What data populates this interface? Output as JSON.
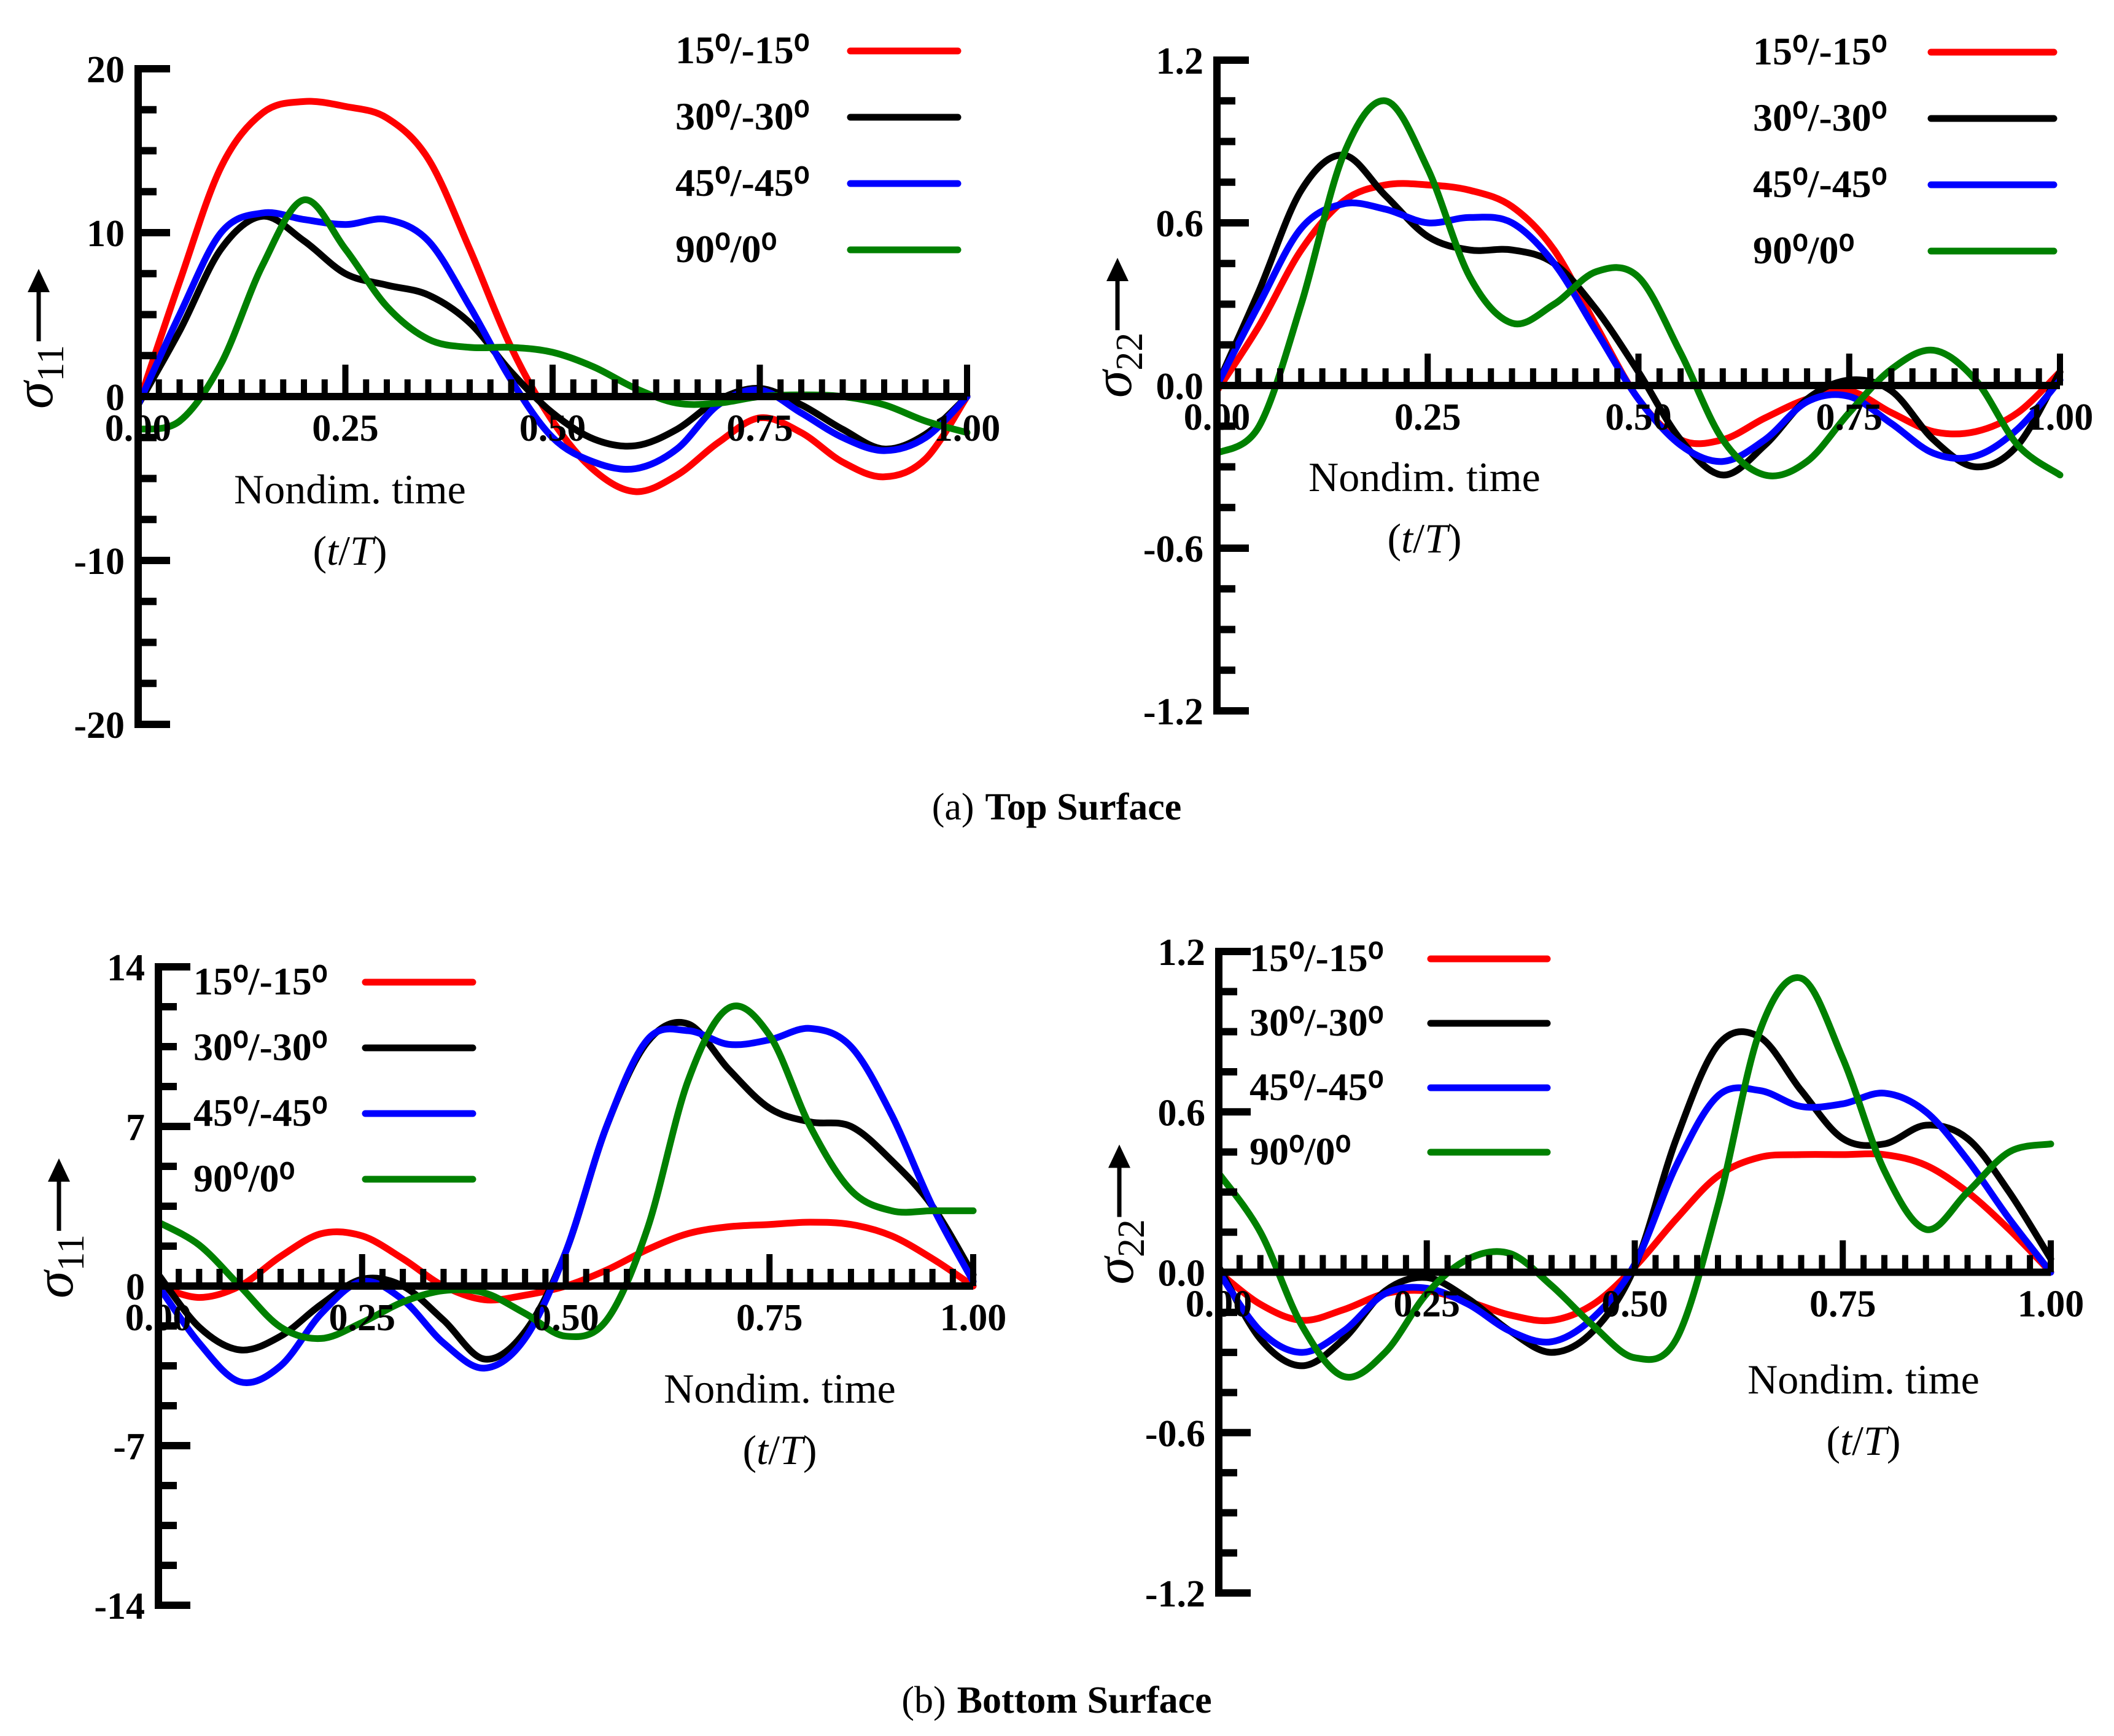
{
  "figure": {
    "caption_top": {
      "label": "(a)",
      "text": "Top Surface"
    },
    "caption_bottom": {
      "label": "(b)",
      "text": "Bottom Surface"
    }
  },
  "colors": {
    "s15": "#ff0000",
    "s30": "#000000",
    "s45": "#0000ff",
    "s90": "#008000",
    "axis": "#000000"
  },
  "chart_data": [
    {
      "id": "top-sigma11",
      "type": "line",
      "panel": "top-left",
      "ylabel": {
        "sym": "σ",
        "sub": "11"
      },
      "xlabel": "Nondim. time",
      "xlabel2": "(t/T)",
      "xlim": [
        0,
        1
      ],
      "ylim": [
        -20,
        20
      ],
      "xticks": [
        "0.00",
        "0.25",
        "0.50",
        "0.75",
        "1.00"
      ],
      "yticks": [
        "-20",
        "-10",
        "0",
        "10",
        "20"
      ],
      "ytick_values": [
        -20,
        -10,
        0,
        10,
        20
      ],
      "legend": "top-right",
      "series": [
        {
          "name": "15⁰/-15⁰",
          "color": "#ff0000",
          "x": [
            0,
            0.05,
            0.1,
            0.15,
            0.2,
            0.25,
            0.3,
            0.35,
            0.4,
            0.45,
            0.5,
            0.55,
            0.6,
            0.65,
            0.7,
            0.75,
            0.8,
            0.85,
            0.9,
            0.95,
            1.0
          ],
          "y": [
            -0.5,
            7,
            14,
            17.3,
            18,
            17.7,
            17,
            14.5,
            9,
            3,
            -1.5,
            -4.5,
            -5.8,
            -4.8,
            -2.8,
            -1.3,
            -2.2,
            -4,
            -4.9,
            -3.8,
            0
          ]
        },
        {
          "name": "30⁰/-30⁰",
          "color": "#000000",
          "x": [
            0,
            0.05,
            0.1,
            0.15,
            0.2,
            0.25,
            0.3,
            0.35,
            0.4,
            0.45,
            0.5,
            0.55,
            0.6,
            0.65,
            0.7,
            0.75,
            0.8,
            0.85,
            0.9,
            0.95,
            1.0
          ],
          "y": [
            -0.5,
            4,
            9,
            11,
            9.5,
            7.5,
            6.8,
            6.2,
            4.5,
            1.5,
            -1,
            -2.6,
            -3,
            -2,
            -0.2,
            0.5,
            -0.5,
            -2,
            -3.2,
            -2.3,
            0
          ]
        },
        {
          "name": "45⁰/-45⁰",
          "color": "#0000ff",
          "x": [
            0,
            0.05,
            0.1,
            0.15,
            0.2,
            0.25,
            0.3,
            0.35,
            0.4,
            0.45,
            0.5,
            0.55,
            0.6,
            0.65,
            0.7,
            0.75,
            0.8,
            0.85,
            0.9,
            0.95,
            1.0
          ],
          "y": [
            -0.5,
            5,
            10,
            11.2,
            10.8,
            10.5,
            10.8,
            9.5,
            5.5,
            1,
            -2.5,
            -4,
            -4.4,
            -3.2,
            -0.5,
            0.4,
            -1,
            -2.5,
            -3.3,
            -2.5,
            0
          ]
        },
        {
          "name": "90⁰/0⁰",
          "color": "#008000",
          "x": [
            0,
            0.05,
            0.1,
            0.15,
            0.2,
            0.25,
            0.3,
            0.35,
            0.4,
            0.45,
            0.5,
            0.55,
            0.6,
            0.65,
            0.7,
            0.75,
            0.8,
            0.85,
            0.9,
            0.95,
            1.0
          ],
          "y": [
            -2,
            -1.5,
            2,
            8,
            12,
            9,
            5.5,
            3.5,
            3,
            3,
            2.7,
            1.8,
            0.5,
            -0.4,
            -0.4,
            0,
            0.1,
            0,
            -0.5,
            -1.5,
            -2.2
          ]
        }
      ]
    },
    {
      "id": "top-sigma22",
      "type": "line",
      "panel": "top-right",
      "ylabel": {
        "sym": "σ",
        "sub": "22"
      },
      "xlabel": "Nondim. time",
      "xlabel2": "(t/T)",
      "xlim": [
        0,
        1
      ],
      "ylim": [
        -1.2,
        1.2
      ],
      "xticks": [
        "0.00",
        "0.25",
        "0.50",
        "0.75",
        "1.00"
      ],
      "yticks": [
        "-1.2",
        "-0.6",
        "0.0",
        "0.6",
        "1.2"
      ],
      "ytick_values": [
        -1.2,
        -0.6,
        0,
        0.6,
        1.2
      ],
      "legend": "top-right",
      "series": [
        {
          "name": "15⁰/-15⁰",
          "color": "#ff0000",
          "x": [
            0,
            0.05,
            0.1,
            0.15,
            0.2,
            0.25,
            0.3,
            0.35,
            0.4,
            0.45,
            0.5,
            0.55,
            0.6,
            0.65,
            0.7,
            0.75,
            0.8,
            0.85,
            0.9,
            0.95,
            1.0
          ],
          "y": [
            -0.02,
            0.22,
            0.5,
            0.68,
            0.74,
            0.74,
            0.72,
            0.66,
            0.5,
            0.22,
            -0.05,
            -0.2,
            -0.2,
            -0.12,
            -0.05,
            -0.02,
            -0.1,
            -0.17,
            -0.17,
            -0.1,
            0.05
          ]
        },
        {
          "name": "30⁰/-30⁰",
          "color": "#000000",
          "x": [
            0,
            0.05,
            0.1,
            0.15,
            0.2,
            0.25,
            0.3,
            0.35,
            0.4,
            0.45,
            0.5,
            0.55,
            0.6,
            0.65,
            0.7,
            0.75,
            0.8,
            0.85,
            0.9,
            0.95,
            1.0
          ],
          "y": [
            0,
            0.35,
            0.72,
            0.85,
            0.7,
            0.55,
            0.5,
            0.5,
            0.45,
            0.28,
            0.05,
            -0.2,
            -0.33,
            -0.22,
            -0.05,
            0.02,
            -0.02,
            -0.2,
            -0.3,
            -0.22,
            0.05
          ]
        },
        {
          "name": "45⁰/-45⁰",
          "color": "#0000ff",
          "x": [
            0,
            0.05,
            0.1,
            0.15,
            0.2,
            0.25,
            0.3,
            0.35,
            0.4,
            0.45,
            0.5,
            0.55,
            0.6,
            0.65,
            0.7,
            0.75,
            0.8,
            0.85,
            0.9,
            0.95,
            1.0
          ],
          "y": [
            0,
            0.3,
            0.58,
            0.67,
            0.65,
            0.6,
            0.62,
            0.6,
            0.45,
            0.2,
            -0.05,
            -0.22,
            -0.28,
            -0.2,
            -0.06,
            -0.04,
            -0.14,
            -0.25,
            -0.26,
            -0.16,
            0.02
          ]
        },
        {
          "name": "90⁰/0⁰",
          "color": "#008000",
          "x": [
            0,
            0.05,
            0.1,
            0.15,
            0.2,
            0.25,
            0.3,
            0.35,
            0.4,
            0.45,
            0.5,
            0.55,
            0.6,
            0.65,
            0.7,
            0.75,
            0.8,
            0.85,
            0.9,
            0.95,
            1.0
          ],
          "y": [
            -0.25,
            -0.15,
            0.3,
            0.85,
            1.05,
            0.8,
            0.4,
            0.23,
            0.3,
            0.42,
            0.4,
            0.12,
            -0.2,
            -0.33,
            -0.28,
            -0.1,
            0.06,
            0.13,
            0.02,
            -0.22,
            -0.33
          ]
        }
      ]
    },
    {
      "id": "bottom-sigma11",
      "type": "line",
      "panel": "bottom-left",
      "ylabel": {
        "sym": "σ",
        "sub": "11"
      },
      "xlabel": "Nondim. time",
      "xlabel2": "(t/T)",
      "xlim": [
        0,
        1
      ],
      "ylim": [
        -14,
        14
      ],
      "xticks": [
        "0.00",
        "0.25",
        "0.50",
        "0.75",
        "1.00"
      ],
      "yticks": [
        "-14",
        "-7",
        "0",
        "7",
        "14"
      ],
      "ytick_values": [
        -14,
        -7,
        0,
        7,
        14
      ],
      "legend": "top-left",
      "series": [
        {
          "name": "15⁰/-15⁰",
          "color": "#ff0000",
          "x": [
            0,
            0.05,
            0.1,
            0.15,
            0.2,
            0.25,
            0.3,
            0.35,
            0.4,
            0.45,
            0.5,
            0.55,
            0.6,
            0.65,
            0.7,
            0.75,
            0.8,
            0.85,
            0.9,
            0.95,
            1.0
          ],
          "y": [
            0,
            -0.5,
            0,
            1.3,
            2.3,
            2.2,
            1.2,
            0,
            -0.6,
            -0.4,
            0,
            0.7,
            1.6,
            2.3,
            2.6,
            2.7,
            2.8,
            2.7,
            2.2,
            1.2,
            0
          ]
        },
        {
          "name": "30⁰/-30⁰",
          "color": "#000000",
          "x": [
            0,
            0.05,
            0.1,
            0.15,
            0.2,
            0.25,
            0.3,
            0.35,
            0.4,
            0.45,
            0.5,
            0.55,
            0.6,
            0.65,
            0.7,
            0.75,
            0.8,
            0.85,
            0.9,
            0.95,
            1.0
          ],
          "y": [
            0.5,
            -1.8,
            -2.8,
            -2.2,
            -0.8,
            0.3,
            0,
            -1.5,
            -3.2,
            -2,
            1.5,
            7,
            10.7,
            11.5,
            9.5,
            7.8,
            7.2,
            7,
            5.5,
            3.5,
            0.5
          ]
        },
        {
          "name": "45⁰/-45⁰",
          "color": "#0000ff",
          "x": [
            0,
            0.05,
            0.1,
            0.15,
            0.2,
            0.25,
            0.3,
            0.35,
            0.4,
            0.45,
            0.5,
            0.55,
            0.6,
            0.65,
            0.7,
            0.75,
            0.8,
            0.85,
            0.9,
            0.95,
            1.0
          ],
          "y": [
            0,
            -2.5,
            -4.2,
            -3.5,
            -1.2,
            0.2,
            -0.6,
            -2.5,
            -3.6,
            -2.3,
            1.5,
            7,
            10.8,
            11.2,
            10.6,
            10.8,
            11.3,
            10.5,
            7.5,
            3.5,
            0.2
          ]
        },
        {
          "name": "90⁰/0⁰",
          "color": "#008000",
          "x": [
            0,
            0.05,
            0.1,
            0.15,
            0.2,
            0.25,
            0.3,
            0.35,
            0.4,
            0.45,
            0.5,
            0.55,
            0.6,
            0.65,
            0.7,
            0.75,
            0.8,
            0.85,
            0.9,
            0.95,
            1.0
          ],
          "y": [
            2.8,
            1.8,
            0,
            -1.8,
            -2.3,
            -1.6,
            -0.7,
            -0.2,
            -0.3,
            -1.2,
            -2.2,
            -1.5,
            2.5,
            9,
            12.2,
            11,
            7,
            4.2,
            3.3,
            3.3,
            3.3
          ]
        }
      ]
    },
    {
      "id": "bottom-sigma22",
      "type": "line",
      "panel": "bottom-right",
      "ylabel": {
        "sym": "σ",
        "sub": "22"
      },
      "xlabel": "Nondim. time",
      "xlabel2": "(t/T)",
      "xlim": [
        0,
        1
      ],
      "ylim": [
        -1.2,
        1.2
      ],
      "xticks": [
        "0.00",
        "0.25",
        "0.50",
        "0.75",
        "1.00"
      ],
      "yticks": [
        "-1.2",
        "-0.6",
        "0.0",
        "0.6",
        "1.2"
      ],
      "ytick_values": [
        -1.2,
        -0.6,
        0,
        0.6,
        1.2
      ],
      "legend": "top-left",
      "series": [
        {
          "name": "15⁰/-15⁰",
          "color": "#ff0000",
          "x": [
            0,
            0.05,
            0.1,
            0.15,
            0.2,
            0.25,
            0.3,
            0.35,
            0.4,
            0.45,
            0.5,
            0.55,
            0.6,
            0.65,
            0.7,
            0.75,
            0.8,
            0.85,
            0.9,
            0.95,
            1.0
          ],
          "y": [
            0,
            -0.12,
            -0.18,
            -0.14,
            -0.08,
            -0.07,
            -0.11,
            -0.16,
            -0.18,
            -0.12,
            0.02,
            0.2,
            0.36,
            0.43,
            0.44,
            0.44,
            0.44,
            0.4,
            0.3,
            0.16,
            0
          ]
        },
        {
          "name": "30⁰/-30⁰",
          "color": "#000000",
          "x": [
            0,
            0.05,
            0.1,
            0.15,
            0.2,
            0.25,
            0.3,
            0.35,
            0.4,
            0.45,
            0.5,
            0.55,
            0.6,
            0.65,
            0.7,
            0.75,
            0.8,
            0.85,
            0.9,
            0.95,
            1.0
          ],
          "y": [
            0.02,
            -0.25,
            -0.35,
            -0.25,
            -0.07,
            -0.02,
            -0.1,
            -0.22,
            -0.3,
            -0.22,
            0.02,
            0.5,
            0.85,
            0.88,
            0.68,
            0.5,
            0.48,
            0.55,
            0.5,
            0.3,
            0.05
          ]
        },
        {
          "name": "45⁰/-45⁰",
          "color": "#0000ff",
          "x": [
            0,
            0.05,
            0.1,
            0.15,
            0.2,
            0.25,
            0.3,
            0.35,
            0.4,
            0.45,
            0.5,
            0.55,
            0.6,
            0.65,
            0.7,
            0.75,
            0.8,
            0.85,
            0.9,
            0.95,
            1.0
          ],
          "y": [
            0,
            -0.22,
            -0.3,
            -0.22,
            -0.08,
            -0.06,
            -0.12,
            -0.22,
            -0.26,
            -0.17,
            0.03,
            0.4,
            0.66,
            0.68,
            0.62,
            0.63,
            0.67,
            0.6,
            0.42,
            0.2,
            0
          ]
        },
        {
          "name": "90⁰/0⁰",
          "color": "#008000",
          "x": [
            0,
            0.05,
            0.1,
            0.15,
            0.2,
            0.25,
            0.3,
            0.35,
            0.4,
            0.45,
            0.5,
            0.55,
            0.6,
            0.65,
            0.7,
            0.75,
            0.8,
            0.85,
            0.9,
            0.95,
            1.0
          ],
          "y": [
            0.37,
            0.15,
            -0.2,
            -0.39,
            -0.3,
            -0.08,
            0.05,
            0.07,
            -0.05,
            -0.2,
            -0.32,
            -0.25,
            0.25,
            0.9,
            1.1,
            0.8,
            0.38,
            0.16,
            0.3,
            0.45,
            0.48
          ]
        }
      ]
    }
  ]
}
